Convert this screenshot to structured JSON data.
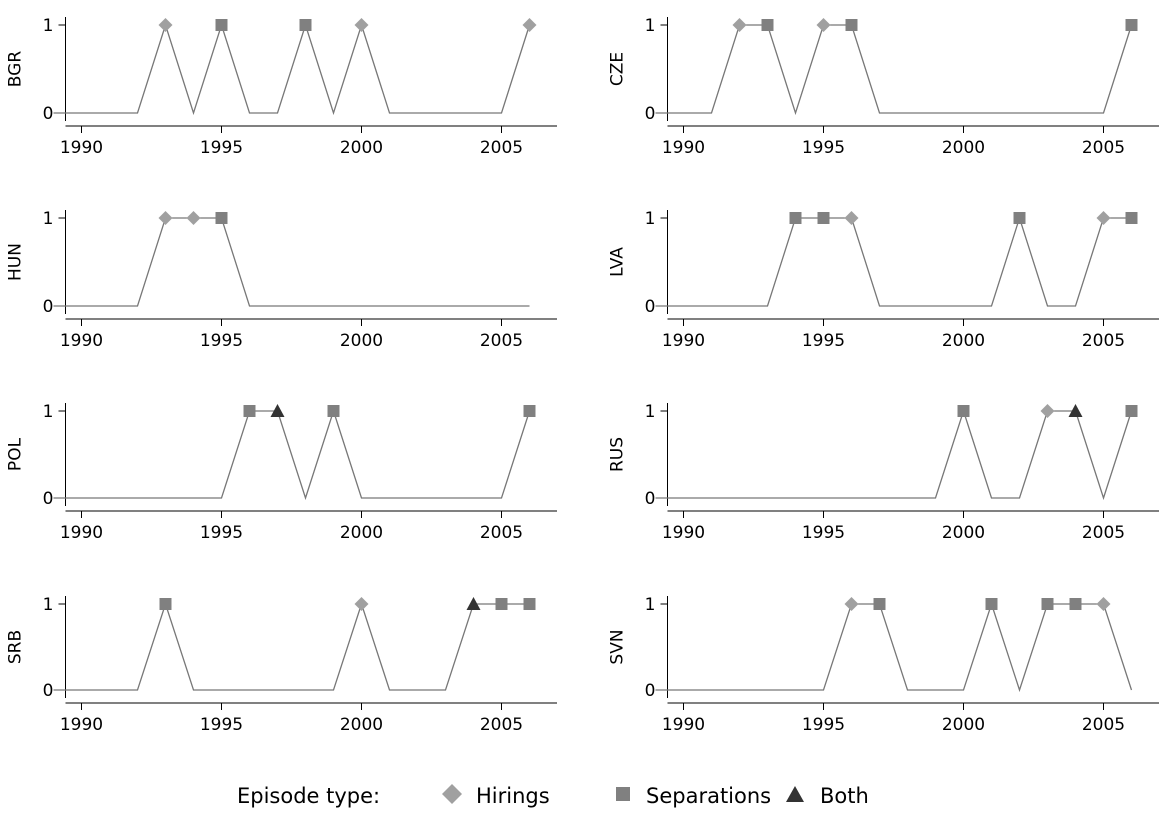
{
  "chart_data": [
    {
      "type": "line",
      "ylabel": "BGR",
      "x": [
        1989,
        1990,
        1991,
        1992,
        1993,
        1994,
        1995,
        1996,
        1997,
        1998,
        1999,
        2000,
        2001,
        2002,
        2003,
        2004,
        2005,
        2006
      ],
      "values": [
        0,
        0,
        0,
        0,
        1,
        0,
        1,
        0,
        0,
        1,
        0,
        1,
        0,
        0,
        0,
        0,
        0,
        1
      ],
      "markers": [
        "",
        "",
        "",
        "",
        "Hirings",
        "",
        "Separations",
        "",
        "",
        "Separations",
        "",
        "Hirings",
        "",
        "",
        "",
        "",
        "",
        "Hirings"
      ],
      "xlim": [
        1988,
        2006.2
      ],
      "ylim": [
        0,
        1
      ],
      "xticks": [
        1990,
        1995,
        2000,
        2005
      ],
      "yticks": [
        0,
        1
      ]
    },
    {
      "type": "line",
      "ylabel": "CZE",
      "x": [
        1989,
        1990,
        1991,
        1992,
        1993,
        1994,
        1995,
        1996,
        1997,
        1998,
        1999,
        2000,
        2001,
        2002,
        2003,
        2004,
        2005,
        2006
      ],
      "values": [
        0,
        0,
        0,
        1,
        1,
        0,
        1,
        1,
        0,
        0,
        0,
        0,
        0,
        0,
        0,
        0,
        0,
        1
      ],
      "markers": [
        "",
        "",
        "",
        "Hirings",
        "Separations",
        "",
        "Hirings",
        "Separations",
        "",
        "",
        "",
        "",
        "",
        "",
        "",
        "",
        "",
        "Separations"
      ],
      "xlim": [
        1988,
        2006.2
      ],
      "ylim": [
        0,
        1
      ],
      "xticks": [
        1990,
        1995,
        2000,
        2005
      ],
      "yticks": [
        0,
        1
      ]
    },
    {
      "type": "line",
      "ylabel": "HUN",
      "x": [
        1989,
        1990,
        1991,
        1992,
        1993,
        1994,
        1995,
        1996,
        1997,
        1998,
        1999,
        2000,
        2001,
        2002,
        2003,
        2004,
        2005,
        2006
      ],
      "values": [
        0,
        0,
        0,
        0,
        1,
        1,
        1,
        0,
        0,
        0,
        0,
        0,
        0,
        0,
        0,
        0,
        0,
        0
      ],
      "markers": [
        "",
        "",
        "",
        "",
        "Hirings",
        "Hirings",
        "Separations",
        "",
        "",
        "",
        "",
        "",
        "",
        "",
        "",
        "",
        "",
        ""
      ],
      "xlim": [
        1988,
        2006.2
      ],
      "ylim": [
        0,
        1
      ],
      "xticks": [
        1990,
        1995,
        2000,
        2005
      ],
      "yticks": [
        0,
        1
      ]
    },
    {
      "type": "line",
      "ylabel": "LVA",
      "x": [
        1989,
        1990,
        1991,
        1992,
        1993,
        1994,
        1995,
        1996,
        1997,
        1998,
        1999,
        2000,
        2001,
        2002,
        2003,
        2004,
        2005,
        2006
      ],
      "values": [
        0,
        0,
        0,
        0,
        0,
        1,
        1,
        1,
        0,
        0,
        0,
        0,
        0,
        1,
        0,
        0,
        1,
        1
      ],
      "markers": [
        "",
        "",
        "",
        "",
        "",
        "Separations",
        "Separations",
        "Hirings",
        "",
        "",
        "",
        "",
        "",
        "Separations",
        "",
        "",
        "Hirings",
        "Separations"
      ],
      "xlim": [
        1988,
        2006.2
      ],
      "ylim": [
        0,
        1
      ],
      "xticks": [
        1990,
        1995,
        2000,
        2005
      ],
      "yticks": [
        0,
        1
      ]
    },
    {
      "type": "line",
      "ylabel": "POL",
      "x": [
        1989,
        1990,
        1991,
        1992,
        1993,
        1994,
        1995,
        1996,
        1997,
        1998,
        1999,
        2000,
        2001,
        2002,
        2003,
        2004,
        2005,
        2006
      ],
      "values": [
        0,
        0,
        0,
        0,
        0,
        0,
        0,
        1,
        1,
        0,
        1,
        0,
        0,
        0,
        0,
        0,
        0,
        1
      ],
      "markers": [
        "",
        "",
        "",
        "",
        "",
        "",
        "",
        "Separations",
        "Both",
        "",
        "Separations",
        "",
        "",
        "",
        "",
        "",
        "",
        "Separations"
      ],
      "xlim": [
        1988,
        2006.2
      ],
      "ylim": [
        0,
        1
      ],
      "xticks": [
        1990,
        1995,
        2000,
        2005
      ],
      "yticks": [
        0,
        1
      ]
    },
    {
      "type": "line",
      "ylabel": "RUS",
      "x": [
        1989,
        1990,
        1991,
        1992,
        1993,
        1994,
        1995,
        1996,
        1997,
        1998,
        1999,
        2000,
        2001,
        2002,
        2003,
        2004,
        2005,
        2006
      ],
      "values": [
        0,
        0,
        0,
        0,
        0,
        0,
        0,
        0,
        0,
        0,
        0,
        1,
        0,
        0,
        1,
        1,
        0,
        1
      ],
      "markers": [
        "",
        "",
        "",
        "",
        "",
        "",
        "",
        "",
        "",
        "",
        "",
        "Separations",
        "",
        "",
        "Hirings",
        "Both",
        "",
        "Separations"
      ],
      "xlim": [
        1988,
        2006.2
      ],
      "ylim": [
        0,
        1
      ],
      "xticks": [
        1990,
        1995,
        2000,
        2005
      ],
      "yticks": [
        0,
        1
      ]
    },
    {
      "type": "line",
      "ylabel": "SRB",
      "x": [
        1989,
        1990,
        1991,
        1992,
        1993,
        1994,
        1995,
        1996,
        1997,
        1998,
        1999,
        2000,
        2001,
        2002,
        2003,
        2004,
        2005,
        2006
      ],
      "values": [
        0,
        0,
        0,
        0,
        1,
        0,
        0,
        0,
        0,
        0,
        0,
        1,
        0,
        0,
        0,
        1,
        1,
        1
      ],
      "markers": [
        "",
        "",
        "",
        "",
        "Separations",
        "",
        "",
        "",
        "",
        "",
        "",
        "Hirings",
        "",
        "",
        "",
        "Both",
        "Separations",
        "Separations"
      ],
      "xlim": [
        1988,
        2006.2
      ],
      "ylim": [
        0,
        1
      ],
      "xticks": [
        1990,
        1995,
        2000,
        2005
      ],
      "yticks": [
        0,
        1
      ]
    },
    {
      "type": "line",
      "ylabel": "SVN",
      "x": [
        1989,
        1990,
        1991,
        1992,
        1993,
        1994,
        1995,
        1996,
        1997,
        1998,
        1999,
        2000,
        2001,
        2002,
        2003,
        2004,
        2005,
        2006
      ],
      "values": [
        0,
        0,
        0,
        0,
        0,
        0,
        0,
        1,
        1,
        0,
        0,
        0,
        1,
        0,
        1,
        1,
        1,
        0
      ],
      "markers": [
        "",
        "",
        "",
        "",
        "",
        "",
        "",
        "Hirings",
        "Separations",
        "",
        "",
        "",
        "Separations",
        "",
        "Separations",
        "Separations",
        "Hirings",
        ""
      ],
      "xlim": [
        1988,
        2006.2
      ],
      "ylim": [
        0,
        1
      ],
      "xticks": [
        1990,
        1995,
        2000,
        2005
      ],
      "yticks": [
        0,
        1
      ]
    }
  ],
  "legend": {
    "title": "Episode type:",
    "placement": "bottom-center",
    "items": [
      {
        "label": "Hirings",
        "marker": "diamond-icon",
        "color": "#a0a0a0"
      },
      {
        "label": "Separations",
        "marker": "square-icon",
        "color": "#808080"
      },
      {
        "label": "Both",
        "marker": "triangle-icon",
        "color": "#333333"
      }
    ]
  },
  "colors": {
    "line": "#777777",
    "hirings": "#a0a0a0",
    "separations": "#808080",
    "both": "#333333"
  }
}
